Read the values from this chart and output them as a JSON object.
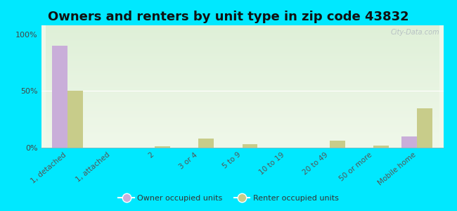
{
  "title": "Owners and renters by unit type in zip code 43832",
  "categories": [
    "1, detached",
    "1, attached",
    "2",
    "3 or 4",
    "5 to 9",
    "10 to 19",
    "20 to 49",
    "50 or more",
    "Mobile home"
  ],
  "owner_values": [
    90,
    0,
    0,
    0,
    0,
    0,
    0,
    0,
    10
  ],
  "renter_values": [
    50,
    0,
    1,
    8,
    3,
    0,
    6,
    2,
    35
  ],
  "owner_color": "#c9aed9",
  "renter_color": "#c8cc8a",
  "background_color": "#00e8ff",
  "plot_bg_color_top": "#dff0d8",
  "plot_bg_color_bottom": "#f0f8ea",
  "ylabel_ticks": [
    "0%",
    "50%",
    "100%"
  ],
  "ytick_values": [
    0,
    50,
    100
  ],
  "ylim": [
    0,
    108
  ],
  "bar_width": 0.35,
  "title_fontsize": 13,
  "legend_labels": [
    "Owner occupied units",
    "Renter occupied units"
  ],
  "watermark": "City-Data.com"
}
